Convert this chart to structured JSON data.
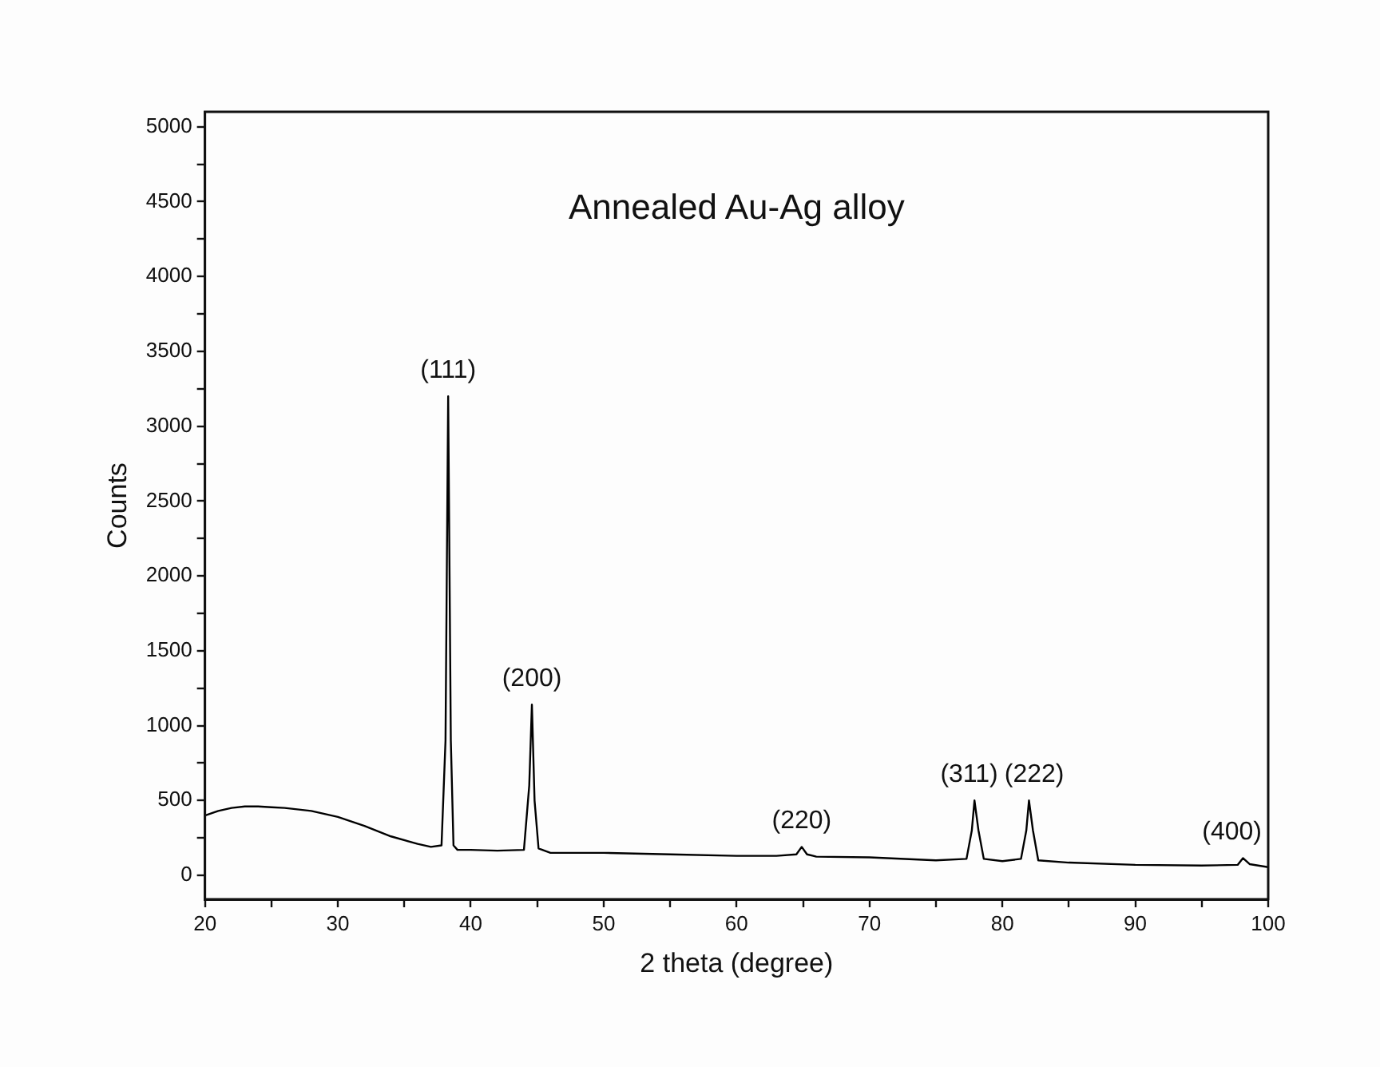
{
  "chart_data": {
    "type": "line",
    "title": "Annealed Au-Ag alloy",
    "xlabel": "2 theta (degree)",
    "ylabel": "Counts",
    "x": [
      20,
      21,
      22,
      23,
      24,
      25,
      26,
      28,
      30,
      32,
      34,
      36,
      37,
      37.8,
      38.1,
      38.3,
      38.5,
      38.7,
      39,
      40,
      42,
      44,
      44.4,
      44.6,
      44.8,
      45.1,
      46,
      48,
      50,
      55,
      60,
      63,
      64.5,
      64.9,
      65.3,
      66,
      70,
      75,
      77.3,
      77.7,
      77.9,
      78.2,
      78.6,
      80,
      81.4,
      81.8,
      82,
      82.3,
      82.7,
      85,
      90,
      95,
      97.7,
      98.1,
      98.6,
      100
    ],
    "values": [
      400,
      430,
      450,
      460,
      460,
      455,
      450,
      430,
      390,
      330,
      260,
      210,
      190,
      200,
      900,
      3200,
      900,
      200,
      170,
      170,
      165,
      170,
      600,
      1140,
      500,
      180,
      150,
      150,
      150,
      140,
      130,
      130,
      140,
      190,
      140,
      125,
      120,
      100,
      110,
      300,
      500,
      300,
      110,
      95,
      110,
      300,
      500,
      300,
      100,
      85,
      70,
      65,
      70,
      115,
      75,
      55
    ],
    "color": "#000000",
    "xlim": [
      20,
      100
    ],
    "ylim": [
      -160,
      5100
    ],
    "xticks": [
      20,
      {
        "value": 25,
        "label": null
      },
      30,
      {
        "value": 35,
        "label": null
      },
      40,
      {
        "value": 45,
        "label": null
      },
      50,
      {
        "value": 55,
        "label": null
      },
      60,
      {
        "value": 65,
        "label": null
      },
      70,
      {
        "value": 75,
        "label": null
      },
      80,
      {
        "value": 85,
        "label": null
      },
      90,
      {
        "value": 95,
        "label": null
      },
      100
    ],
    "yticks": [
      0,
      {
        "value": 250,
        "label": null
      },
      500,
      {
        "value": 750,
        "label": null
      },
      1000,
      {
        "value": 1250,
        "label": null
      },
      1500,
      {
        "value": 1750,
        "label": null
      },
      2000,
      {
        "value": 2250,
        "label": null
      },
      2500,
      {
        "value": 2750,
        "label": null
      },
      3000,
      {
        "value": 3250,
        "label": null
      },
      3500,
      {
        "value": 3750,
        "label": null
      },
      4000,
      {
        "value": 4250,
        "label": null
      },
      4500,
      {
        "value": 4750,
        "label": null
      },
      5000
    ],
    "annotations": [
      {
        "text": "(111)",
        "x": 38.3,
        "y": 3200
      },
      {
        "text": "(200)",
        "x": 44.6,
        "y": 1140
      },
      {
        "text": "(220)",
        "x": 64.9,
        "y": 190
      },
      {
        "text": "(311)",
        "x": 77.9,
        "y": 500
      },
      {
        "text": "(222)",
        "x": 82,
        "y": 500
      },
      {
        "text": "(400)",
        "x": 98.1,
        "y": 115
      }
    ],
    "legend": false,
    "grid": false,
    "marker": "none",
    "line_style": "solid"
  }
}
